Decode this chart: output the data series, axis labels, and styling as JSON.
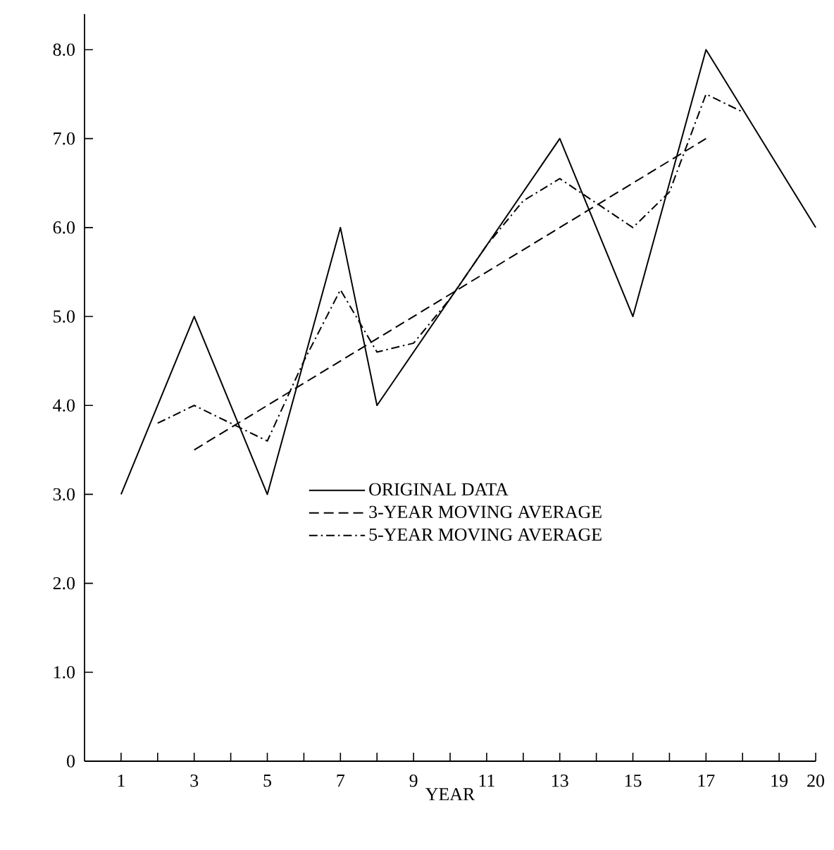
{
  "chart_data": {
    "type": "line",
    "xlabel": "YEAR",
    "xlim": [
      0,
      20
    ],
    "ylim": [
      0,
      8.4
    ],
    "xticks": [
      1,
      {
        "value": 2,
        "label": null
      },
      3,
      {
        "value": 4,
        "label": null
      },
      5,
      {
        "value": 6,
        "label": null
      },
      7,
      {
        "value": 8,
        "label": null
      },
      9,
      {
        "value": 10,
        "label": null
      },
      11,
      {
        "value": 12,
        "label": null
      },
      13,
      {
        "value": 14,
        "label": null
      },
      15,
      {
        "value": 16,
        "label": null
      },
      17,
      {
        "value": 18,
        "label": null
      },
      19,
      20
    ],
    "yticks": [
      0,
      {
        "value": 1,
        "label": "1.0"
      },
      {
        "value": 2,
        "label": "2.0"
      },
      {
        "value": 3,
        "label": "3.0"
      },
      {
        "value": 4,
        "label": "4.0"
      },
      {
        "value": 5,
        "label": "5.0"
      },
      {
        "value": 6,
        "label": "6.0"
      },
      {
        "value": 7,
        "label": "7.0"
      },
      {
        "value": 8,
        "label": "8.0"
      }
    ],
    "legend": "bottom right",
    "grid": false,
    "marker": "none",
    "series": [
      {
        "name": "ORIGINAL DATA",
        "color": "#000000",
        "line_style": "solid",
        "x": [
          1,
          3,
          5,
          7,
          8,
          13,
          15,
          17,
          20
        ],
        "values": [
          3.0,
          5.0,
          3.0,
          6.0,
          4.0,
          7.0,
          5.0,
          8.0,
          6.0
        ]
      },
      {
        "name": "3-YEAR MOVING AVERAGE",
        "color": "#000000",
        "line_style": "dashed",
        "x": [
          3,
          17
        ],
        "values": [
          3.5,
          7.0
        ]
      },
      {
        "name": "5-YEAR MOVING AVERAGE",
        "color": "#000000",
        "line_style": "dashdot",
        "x": [
          2,
          3,
          5,
          6,
          7,
          8,
          9,
          10,
          11,
          12,
          13,
          15,
          16,
          17,
          18
        ],
        "values": [
          3.8,
          4.0,
          3.6,
          4.5,
          5.3,
          4.6,
          4.7,
          5.2,
          5.8,
          6.3,
          6.55,
          6.0,
          6.4,
          7.5,
          7.3
        ]
      }
    ]
  }
}
